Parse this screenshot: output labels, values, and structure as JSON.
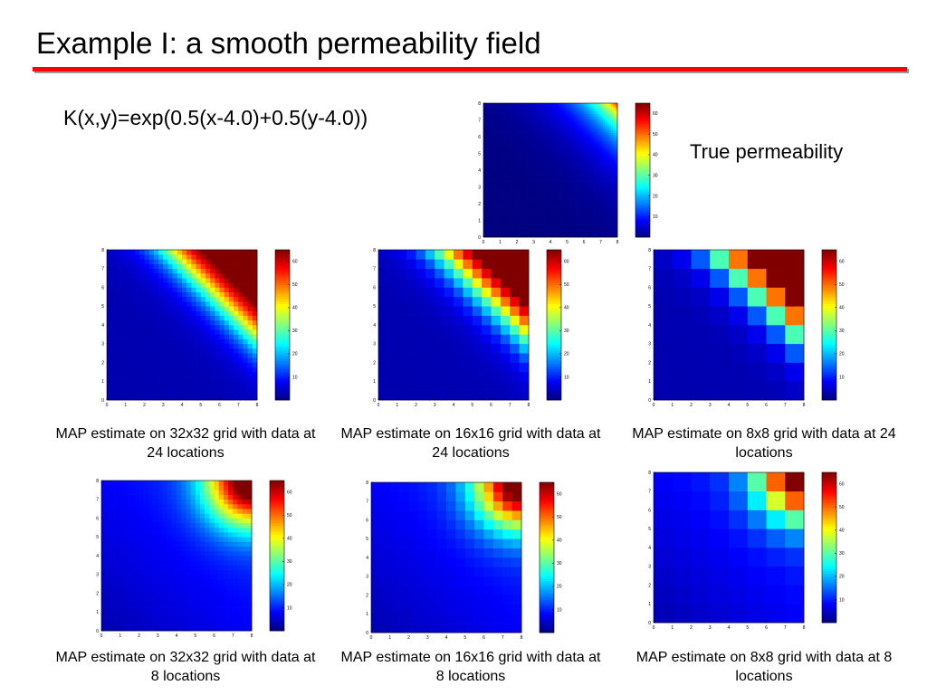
{
  "slide": {
    "title": "Example I: a smooth permeability field",
    "formula": "K(x,y)=exp(0.5(x-4.0)+0.5(y-4.0))",
    "true_label": "True permeability"
  },
  "colors": {
    "title_rule": "#ff0000",
    "colormap": "jet"
  },
  "chart_data": [
    {
      "id": "true-field",
      "type": "heatmap",
      "title": "True permeability",
      "caption": "",
      "grid": 64,
      "estimate": "true",
      "xticks": [
        "0",
        "1",
        "2",
        "3",
        "4",
        "5",
        "6",
        "7",
        "8"
      ],
      "yticks": [
        "0",
        "1",
        "2",
        "3",
        "4",
        "5",
        "6",
        "7",
        "8"
      ],
      "xlim": [
        0,
        8
      ],
      "ylim": [
        0,
        8
      ],
      "colorbar_ticks": [
        "10",
        "20",
        "30",
        "40",
        "50",
        "60"
      ],
      "clim": [
        0,
        65
      ]
    },
    {
      "id": "map-32-24",
      "type": "heatmap",
      "caption": "MAP estimate on 32x32 grid with data at 24 locations",
      "grid": 32,
      "estimate": "24",
      "xticks": [
        "0",
        "1",
        "2",
        "3",
        "4",
        "5",
        "6",
        "7",
        "8"
      ],
      "yticks": [
        "0",
        "1",
        "2",
        "3",
        "4",
        "5",
        "6",
        "7",
        "8"
      ],
      "xlim": [
        0,
        8
      ],
      "ylim": [
        0,
        8
      ],
      "colorbar_ticks": [
        "10",
        "20",
        "30",
        "40",
        "50",
        "60"
      ],
      "clim": [
        0,
        65
      ]
    },
    {
      "id": "map-16-24",
      "type": "heatmap",
      "caption": "MAP estimate on 16x16 grid with data at 24 locations",
      "grid": 16,
      "estimate": "24",
      "xticks": [
        "0",
        "1",
        "2",
        "3",
        "4",
        "5",
        "6",
        "7",
        "8"
      ],
      "yticks": [
        "0",
        "1",
        "2",
        "3",
        "4",
        "5",
        "6",
        "7",
        "8"
      ],
      "xlim": [
        0,
        8
      ],
      "ylim": [
        0,
        8
      ],
      "colorbar_ticks": [
        "10",
        "20",
        "30",
        "40",
        "50",
        "60"
      ],
      "clim": [
        0,
        65
      ]
    },
    {
      "id": "map-8-24",
      "type": "heatmap",
      "caption": "MAP estimate on 8x8 grid with data at 24 locations",
      "grid": 8,
      "estimate": "24",
      "xticks": [
        "0",
        "1",
        "2",
        "3",
        "4",
        "5",
        "6",
        "7",
        "8"
      ],
      "yticks": [
        "0",
        "1",
        "2",
        "3",
        "4",
        "5",
        "6",
        "7",
        "8"
      ],
      "xlim": [
        0,
        8
      ],
      "ylim": [
        0,
        8
      ],
      "colorbar_ticks": [
        "10",
        "20",
        "30",
        "40",
        "50",
        "60"
      ],
      "clim": [
        0,
        65
      ]
    },
    {
      "id": "map-32-8",
      "type": "heatmap",
      "caption": "MAP estimate on 32x32 grid with data at 8 locations",
      "grid": 32,
      "estimate": "8",
      "xticks": [
        "0",
        "1",
        "2",
        "3",
        "4",
        "5",
        "6",
        "7",
        "8"
      ],
      "yticks": [
        "0",
        "1",
        "2",
        "3",
        "4",
        "5",
        "6",
        "7",
        "8"
      ],
      "xlim": [
        0,
        8
      ],
      "ylim": [
        0,
        8
      ],
      "colorbar_ticks": [
        "10",
        "20",
        "30",
        "40",
        "50",
        "60"
      ],
      "clim": [
        0,
        65
      ]
    },
    {
      "id": "map-16-8",
      "type": "heatmap",
      "caption": "MAP estimate on 16x16 grid with data at 8 locations",
      "grid": 16,
      "estimate": "8",
      "xticks": [
        "0",
        "1",
        "2",
        "3",
        "4",
        "5",
        "6",
        "7",
        "8"
      ],
      "yticks": [
        "0",
        "1",
        "2",
        "3",
        "4",
        "5",
        "6",
        "7",
        "8"
      ],
      "xlim": [
        0,
        8
      ],
      "ylim": [
        0,
        8
      ],
      "colorbar_ticks": [
        "10",
        "20",
        "30",
        "40",
        "50",
        "60"
      ],
      "clim": [
        0,
        65
      ]
    },
    {
      "id": "map-8-8",
      "type": "heatmap",
      "caption": "MAP estimate on 8x8 grid with data at 8 locations",
      "grid": 8,
      "estimate": "8",
      "xticks": [
        "0",
        "1",
        "2",
        "3",
        "4",
        "5",
        "6",
        "7",
        "8"
      ],
      "yticks": [
        "0",
        "1",
        "2",
        "3",
        "4",
        "5",
        "6",
        "7",
        "8"
      ],
      "xlim": [
        0,
        8
      ],
      "ylim": [
        0,
        8
      ],
      "colorbar_ticks": [
        "10",
        "20",
        "30",
        "40",
        "50",
        "60"
      ],
      "clim": [
        0,
        65
      ]
    }
  ]
}
